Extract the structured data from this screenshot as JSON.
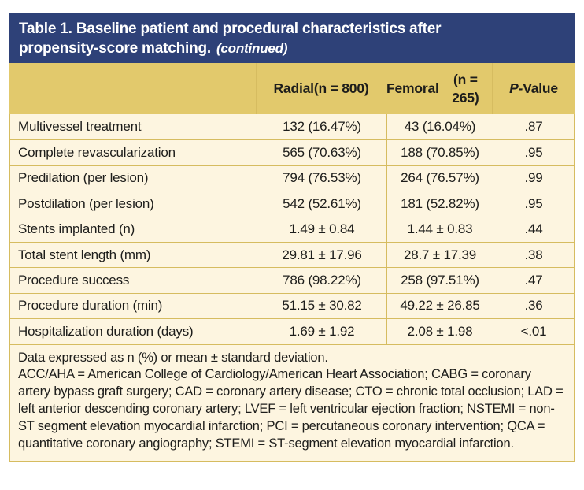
{
  "title": {
    "line1": "Table 1. Baseline patient and procedural characteristics after",
    "line2": "propensity-score matching.",
    "continued": "(continued)"
  },
  "columns": {
    "radial_line1": "Radial",
    "radial_line2": "(n = 800)",
    "femoral_line1": "Femoral",
    "femoral_line2": "(n = 265)",
    "p_line1": "P-",
    "p_line2": "Value"
  },
  "rows": [
    {
      "label": "Multivessel treatment",
      "radial": "132 (16.47%)",
      "femoral": "43 (16.04%)",
      "p": ".87"
    },
    {
      "label": "Complete revascularization",
      "radial": "565 (70.63%)",
      "femoral": "188 (70.85%)",
      "p": ".95"
    },
    {
      "label": "Predilation (per lesion)",
      "radial": "794 (76.53%)",
      "femoral": "264 (76.57%)",
      "p": ".99"
    },
    {
      "label": "Postdilation (per lesion)",
      "radial": "542 (52.61%)",
      "femoral": "181 (52.82%)",
      "p": ".95"
    },
    {
      "label": "Stents implanted (n)",
      "radial": "1.49 ± 0.84",
      "femoral": "1.44 ± 0.83",
      "p": ".44"
    },
    {
      "label": "Total stent length (mm)",
      "radial": "29.81 ± 17.96",
      "femoral": "28.7 ± 17.39",
      "p": ".38"
    },
    {
      "label": "Procedure success",
      "radial": "786 (98.22%)",
      "femoral": "258 (97.51%)",
      "p": ".47"
    },
    {
      "label": "Procedure duration (min)",
      "radial": "51.15 ± 30.82",
      "femoral": "49.22 ± 26.85",
      "p": ".36"
    },
    {
      "label": "Hospitalization duration (days)",
      "radial": "1.69 ± 1.92",
      "femoral": "2.08 ± 1.98",
      "p": "<.01"
    }
  ],
  "footnote": {
    "line1": "Data expressed as n (%) or mean ± standard deviation.",
    "abbreviations": "ACC/AHA = American College of Cardiology/American Heart Association; CABG = coronary artery bypass graft surgery; CAD = coronary artery disease; CTO = chronic total occlusion; LAD = left anterior descending coronary artery; LVEF = left ventricular ejection fraction; NSTEMI = non-ST segment elevation myocardial infarction; PCI = percutaneous coronary intervention; QCA = quantitative coronary angiography; STEMI = ST-segment elevation myocardial infarction."
  },
  "colors": {
    "header_bg": "#2e4178",
    "column_header_bg": "#e2c96c",
    "row_bg": "#fdf5e0",
    "border": "#d6bc60",
    "title_text": "#ffffff",
    "body_text": "#1d1d1b",
    "page_bg": "#ffffff"
  }
}
